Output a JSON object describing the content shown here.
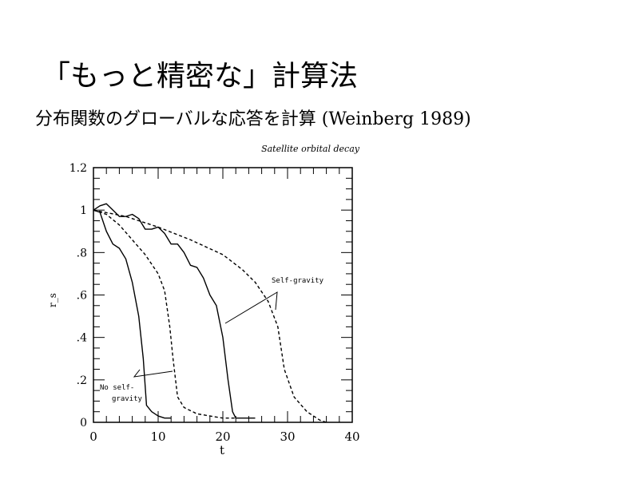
{
  "slide": {
    "title": "「もっと精密な」計算法",
    "subtitle": "分布関数のグローバルな応答を計算",
    "reference": "(Weinberg 1989)"
  },
  "chart_data": {
    "type": "line",
    "title": "Satellite orbital decay",
    "xlabel": "t",
    "ylabel": "r_s",
    "xlim": [
      0,
      40
    ],
    "ylim": [
      0,
      1.2
    ],
    "xticks": [
      {
        "v": 0,
        "label": "0"
      },
      {
        "v": 10,
        "label": "10"
      },
      {
        "v": 20,
        "label": "20"
      },
      {
        "v": 30,
        "label": "30"
      },
      {
        "v": 40,
        "label": "40"
      }
    ],
    "yticks": [
      {
        "v": 0,
        "label": "0"
      },
      {
        "v": 0.2,
        "label": ".2"
      },
      {
        "v": 0.4,
        "label": ".4"
      },
      {
        "v": 0.6,
        "label": ".6"
      },
      {
        "v": 0.8,
        "label": ".8"
      },
      {
        "v": 1,
        "label": "1"
      },
      {
        "v": 1.2,
        "label": "1.2"
      }
    ],
    "grid": false,
    "annotations": [
      {
        "text": "Self-gravity"
      },
      {
        "text": "No self-"
      },
      {
        "text": "gravity"
      }
    ],
    "series": [
      {
        "name": "No self-gravity (solid)",
        "style": "solid",
        "x": [
          0,
          1,
          2,
          3,
          4,
          5,
          6,
          7,
          7.7,
          8.2,
          9,
          10,
          11,
          12
        ],
        "y": [
          1,
          0.99,
          0.9,
          0.84,
          0.82,
          0.77,
          0.66,
          0.5,
          0.3,
          0.08,
          0.05,
          0.03,
          0.02,
          0.02
        ]
      },
      {
        "name": "No self-gravity (dashed)",
        "style": "dashed",
        "x": [
          0,
          2,
          4,
          6,
          8,
          10,
          11,
          11.8,
          12.3,
          13,
          14,
          16,
          18,
          20,
          22
        ],
        "y": [
          1,
          0.98,
          0.93,
          0.86,
          0.79,
          0.7,
          0.62,
          0.45,
          0.3,
          0.12,
          0.07,
          0.04,
          0.03,
          0.02,
          0.02
        ]
      },
      {
        "name": "Self-gravity (solid)",
        "style": "solid",
        "x": [
          0,
          1,
          2,
          3,
          4,
          5,
          6,
          7,
          8,
          9,
          10,
          11,
          12,
          13,
          14,
          15,
          16,
          17,
          18,
          19,
          20,
          20.8,
          21.5,
          22,
          25
        ],
        "y": [
          1,
          1.02,
          1.03,
          1.0,
          0.97,
          0.97,
          0.98,
          0.96,
          0.91,
          0.91,
          0.92,
          0.89,
          0.84,
          0.84,
          0.8,
          0.74,
          0.73,
          0.68,
          0.6,
          0.55,
          0.4,
          0.2,
          0.05,
          0.02,
          0.02
        ]
      },
      {
        "name": "Self-gravity (dashed)",
        "style": "dashed",
        "x": [
          0,
          5,
          10,
          15,
          20,
          23,
          25,
          27,
          28.5,
          29.5,
          31,
          33,
          35,
          36
        ],
        "y": [
          1,
          0.97,
          0.92,
          0.86,
          0.79,
          0.72,
          0.66,
          0.57,
          0.45,
          0.25,
          0.12,
          0.05,
          0.01,
          0
        ]
      }
    ]
  }
}
